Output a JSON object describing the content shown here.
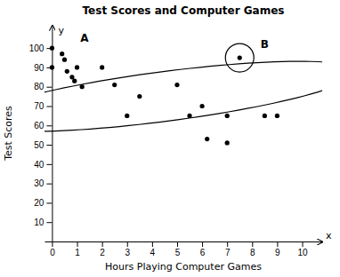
{
  "chart_data": {
    "type": "scatter",
    "title": "Test Scores and Computer Games",
    "xlabel": "Hours Playing Computer Games",
    "ylabel": "Test Scores",
    "x": [
      0,
      0,
      0.4,
      0.5,
      0.6,
      0.8,
      0.9,
      1.0,
      1.2,
      2.0,
      2.5,
      3.0,
      3.5,
      5.0,
      5.5,
      6.0,
      6.2,
      7.0,
      7.0,
      8.5,
      9.0,
      7.5
    ],
    "values": [
      100,
      90,
      97,
      94,
      88,
      85,
      83,
      90,
      80,
      90,
      81,
      65,
      75,
      81,
      65,
      70,
      53,
      65,
      51,
      65,
      65,
      95
    ],
    "color": "black",
    "xlim": [
      -0.3,
      10.8
    ],
    "ylim": [
      0,
      112
    ],
    "xticks": [
      0,
      1,
      2,
      3,
      4,
      5,
      6,
      7,
      8,
      9,
      10
    ],
    "yticks": [
      10,
      20,
      30,
      40,
      50,
      60,
      70,
      80,
      90,
      100
    ],
    "ellipse": {
      "cx": 4.5,
      "cy": 75,
      "width": 10.5,
      "height": 38,
      "angle": -18
    },
    "circle": {
      "cx": 7.5,
      "cy": 95
    },
    "annotations": [
      {
        "text": "A",
        "x": 1.3,
        "y": 105
      },
      {
        "text": "B",
        "x": 8.5,
        "y": 102
      }
    ],
    "axis_arrow_labels": [
      "x",
      "y"
    ]
  }
}
